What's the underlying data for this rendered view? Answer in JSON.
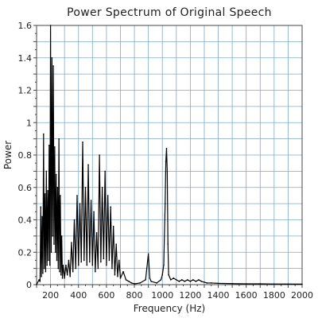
{
  "chart_data": {
    "type": "line",
    "title": "Power Spectrum of Original Speech",
    "xlabel": "Frequency (Hz)",
    "ylabel": "Power",
    "xlim": [
      100,
      2000
    ],
    "ylim": [
      0,
      1.6
    ],
    "xticks": [
      200,
      400,
      600,
      800,
      1000,
      1200,
      1400,
      1600,
      1800,
      2000
    ],
    "yticks": [
      0,
      0.2,
      0.4,
      0.6,
      0.8,
      1,
      1.2,
      1.4,
      1.6
    ],
    "grid": true,
    "colors": {
      "line": "#000000",
      "grid": "#7fa9c9",
      "axis": "#444444"
    },
    "series": [
      {
        "values": [
          [
            100,
            0
          ],
          [
            118,
            0.03
          ],
          [
            125,
            0.02
          ],
          [
            130,
            0.48
          ],
          [
            135,
            0.05
          ],
          [
            140,
            0.42
          ],
          [
            145,
            0.07
          ],
          [
            150,
            0.93
          ],
          [
            155,
            0.1
          ],
          [
            160,
            0.56
          ],
          [
            165,
            0.08
          ],
          [
            170,
            0.7
          ],
          [
            175,
            0.12
          ],
          [
            180,
            0.58
          ],
          [
            185,
            0.15
          ],
          [
            190,
            0.86
          ],
          [
            195,
            0.12
          ],
          [
            200,
            1.6
          ],
          [
            205,
            0.2
          ],
          [
            210,
            1.4
          ],
          [
            215,
            0.3
          ],
          [
            220,
            1.35
          ],
          [
            225,
            0.25
          ],
          [
            230,
            0.85
          ],
          [
            235,
            0.2
          ],
          [
            240,
            0.68
          ],
          [
            245,
            0.15
          ],
          [
            250,
            0.6
          ],
          [
            255,
            0.1
          ],
          [
            260,
            0.9
          ],
          [
            265,
            0.08
          ],
          [
            270,
            0.55
          ],
          [
            275,
            0.06
          ],
          [
            280,
            0.3
          ],
          [
            285,
            0.04
          ],
          [
            290,
            0.12
          ],
          [
            300,
            0.04
          ],
          [
            310,
            0.12
          ],
          [
            320,
            0.06
          ],
          [
            330,
            0.15
          ],
          [
            340,
            0.05
          ],
          [
            350,
            0.26
          ],
          [
            360,
            0.08
          ],
          [
            370,
            0.4
          ],
          [
            380,
            0.1
          ],
          [
            390,
            0.55
          ],
          [
            400,
            0.12
          ],
          [
            410,
            0.5
          ],
          [
            420,
            0.14
          ],
          [
            430,
            0.88
          ],
          [
            440,
            0.15
          ],
          [
            450,
            0.6
          ],
          [
            460,
            0.12
          ],
          [
            470,
            0.74
          ],
          [
            480,
            0.14
          ],
          [
            490,
            0.52
          ],
          [
            500,
            0.12
          ],
          [
            510,
            0.45
          ],
          [
            520,
            0.08
          ],
          [
            530,
            0.32
          ],
          [
            540,
            0.1
          ],
          [
            550,
            0.8
          ],
          [
            560,
            0.14
          ],
          [
            570,
            0.6
          ],
          [
            580,
            0.16
          ],
          [
            590,
            0.7
          ],
          [
            600,
            0.12
          ],
          [
            610,
            0.55
          ],
          [
            620,
            0.15
          ],
          [
            630,
            0.48
          ],
          [
            640,
            0.1
          ],
          [
            650,
            0.36
          ],
          [
            660,
            0.06
          ],
          [
            670,
            0.25
          ],
          [
            680,
            0.05
          ],
          [
            690,
            0.15
          ],
          [
            700,
            0.04
          ],
          [
            720,
            0.08
          ],
          [
            740,
            0.03
          ],
          [
            760,
            0.02
          ],
          [
            780,
            0.01
          ],
          [
            800,
            0.005
          ],
          [
            840,
            0.01
          ],
          [
            880,
            0.03
          ],
          [
            900,
            0.19
          ],
          [
            910,
            0.04
          ],
          [
            920,
            0.02
          ],
          [
            960,
            0.01
          ],
          [
            990,
            0.03
          ],
          [
            1000,
            0.06
          ],
          [
            1010,
            0.12
          ],
          [
            1020,
            0.5
          ],
          [
            1025,
            0.76
          ],
          [
            1030,
            0.84
          ],
          [
            1035,
            0.7
          ],
          [
            1040,
            0.25
          ],
          [
            1045,
            0.06
          ],
          [
            1060,
            0.03
          ],
          [
            1080,
            0.04
          ],
          [
            1100,
            0.03
          ],
          [
            1120,
            0.02
          ],
          [
            1140,
            0.03
          ],
          [
            1160,
            0.02
          ],
          [
            1180,
            0.03
          ],
          [
            1200,
            0.02
          ],
          [
            1220,
            0.03
          ],
          [
            1240,
            0.02
          ],
          [
            1260,
            0.03
          ],
          [
            1280,
            0.02
          ],
          [
            1300,
            0.015
          ],
          [
            1320,
            0.01
          ],
          [
            1350,
            0.01
          ],
          [
            1400,
            0.008
          ],
          [
            1500,
            0.006
          ],
          [
            1600,
            0.005
          ],
          [
            1700,
            0.005
          ],
          [
            1800,
            0.004
          ],
          [
            1900,
            0.004
          ],
          [
            2000,
            0.003
          ]
        ]
      }
    ]
  }
}
